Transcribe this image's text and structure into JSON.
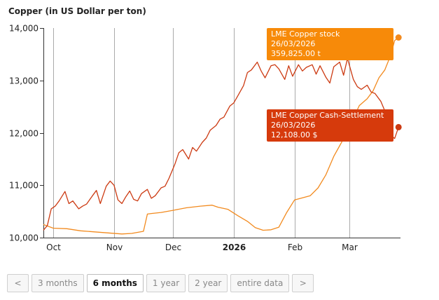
{
  "colors": {
    "stock": "#f28a1e",
    "cash": "#cc3a12",
    "stock_tip": "#f78a09",
    "cash_tip": "#d63a0c",
    "grid": "#aaaaaa"
  },
  "chart_data": {
    "type": "line",
    "title": "Copper (in US Dollar per ton)",
    "ylim": [
      10000,
      14000
    ],
    "y_ticks": [
      10000,
      11000,
      12000,
      13000,
      14000
    ],
    "y_tick_labels": [
      "10,000",
      "11,000",
      "12,000",
      "13,000",
      "14,000"
    ],
    "xlim": [
      "2025-09-26",
      "2026-03-27"
    ],
    "x_ticks": [
      {
        "date": "2025-10-01",
        "label": "Oct",
        "bold": false
      },
      {
        "date": "2025-11-01",
        "label": "Nov",
        "bold": false
      },
      {
        "date": "2025-12-01",
        "label": "Dec",
        "bold": false
      },
      {
        "date": "2026-01-01",
        "label": "2026",
        "bold": true
      },
      {
        "date": "2026-02-01",
        "label": "Feb",
        "bold": false
      },
      {
        "date": "2026-03-01",
        "label": "Mar",
        "bold": false
      }
    ],
    "series": [
      {
        "name": "LME Copper stock",
        "color": "#f28a1e",
        "x": [
          "2025-09-26",
          "2025-10-01",
          "2025-10-08",
          "2025-10-15",
          "2025-10-22",
          "2025-10-29",
          "2025-11-05",
          "2025-11-10",
          "2025-11-13",
          "2025-11-16",
          "2025-11-18",
          "2025-11-20",
          "2025-11-25",
          "2025-12-01",
          "2025-12-08",
          "2025-12-15",
          "2025-12-21",
          "2025-12-24",
          "2025-12-29",
          "2026-01-03",
          "2026-01-08",
          "2026-01-12",
          "2026-01-16",
          "2026-01-20",
          "2026-01-24",
          "2026-01-28",
          "2026-02-01",
          "2026-02-05",
          "2026-02-09",
          "2026-02-13",
          "2026-02-17",
          "2026-02-21",
          "2026-02-25",
          "2026-02-28",
          "2026-03-03",
          "2026-03-06",
          "2026-03-10",
          "2026-03-13",
          "2026-03-16",
          "2026-03-19",
          "2026-03-22",
          "2026-03-24",
          "2026-03-26"
        ],
        "values": [
          10250,
          10180,
          10170,
          10130,
          10110,
          10090,
          10070,
          10080,
          10100,
          10120,
          10450,
          10460,
          10480,
          10520,
          10570,
          10600,
          10620,
          10580,
          10540,
          10420,
          10310,
          10190,
          10140,
          10150,
          10200,
          10480,
          10720,
          10760,
          10800,
          10950,
          11200,
          11550,
          11820,
          12050,
          12280,
          12520,
          12650,
          12800,
          13050,
          13200,
          13480,
          13760,
          13820
        ]
      },
      {
        "name": "LME Copper Cash-Settlement",
        "color": "#cc3a12",
        "x": [
          "2025-09-26",
          "2025-09-28",
          "2025-09-30",
          "2025-10-02",
          "2025-10-04",
          "2025-10-07",
          "2025-10-09",
          "2025-10-11",
          "2025-10-14",
          "2025-10-16",
          "2025-10-18",
          "2025-10-21",
          "2025-10-23",
          "2025-10-25",
          "2025-10-28",
          "2025-10-30",
          "2025-11-01",
          "2025-11-03",
          "2025-11-05",
          "2025-11-07",
          "2025-11-09",
          "2025-11-11",
          "2025-11-13",
          "2025-11-15",
          "2025-11-18",
          "2025-11-20",
          "2025-11-22",
          "2025-11-25",
          "2025-11-27",
          "2025-11-29",
          "2025-12-02",
          "2025-12-04",
          "2025-12-06",
          "2025-12-09",
          "2025-12-11",
          "2025-12-13",
          "2025-12-16",
          "2025-12-18",
          "2025-12-20",
          "2025-12-23",
          "2025-12-25",
          "2025-12-27",
          "2025-12-30",
          "2026-01-01",
          "2026-01-03",
          "2026-01-06",
          "2026-01-08",
          "2026-01-10",
          "2026-01-13",
          "2026-01-15",
          "2026-01-17",
          "2026-01-20",
          "2026-01-22",
          "2026-01-24",
          "2026-01-27",
          "2026-01-29",
          "2026-01-31",
          "2026-02-03",
          "2026-02-05",
          "2026-02-07",
          "2026-02-10",
          "2026-02-12",
          "2026-02-14",
          "2026-02-17",
          "2026-02-19",
          "2026-02-21",
          "2026-02-24",
          "2026-02-26",
          "2026-02-28",
          "2026-03-03",
          "2026-03-05",
          "2026-03-07",
          "2026-03-10",
          "2026-03-12",
          "2026-03-14",
          "2026-03-17",
          "2026-03-19",
          "2026-03-21",
          "2026-03-24",
          "2026-03-26"
        ],
        "values": [
          10140,
          10230,
          10550,
          10600,
          10700,
          10880,
          10650,
          10700,
          10550,
          10600,
          10640,
          10800,
          10900,
          10650,
          10980,
          11080,
          11000,
          10720,
          10650,
          10780,
          10890,
          10730,
          10700,
          10840,
          10920,
          10750,
          10800,
          10950,
          10980,
          11130,
          11400,
          11620,
          11680,
          11500,
          11720,
          11650,
          11820,
          11900,
          12050,
          12140,
          12260,
          12300,
          12510,
          12570,
          12700,
          12900,
          13150,
          13200,
          13350,
          13180,
          13050,
          13280,
          13300,
          13220,
          13020,
          13280,
          13080,
          13300,
          13180,
          13250,
          13300,
          13120,
          13280,
          13060,
          12950,
          13260,
          13350,
          13100,
          13420,
          13020,
          12880,
          12830,
          12910,
          12780,
          12750,
          12600,
          12420,
          12000,
          11890,
          12108
        ]
      }
    ],
    "tooltips": [
      {
        "series": "LME Copper stock",
        "name": "LME Copper stock",
        "date": "26/03/2026",
        "value": "359,825.00 t"
      },
      {
        "series": "LME Copper Cash-Settlement",
        "name": "LME Copper Cash-Settlement",
        "date": "26/03/2026",
        "value": "12,108.00 $"
      }
    ]
  },
  "controls": {
    "prev": "<",
    "next": ">",
    "ranges": [
      "3 months",
      "6 months",
      "1 year",
      "2 year",
      "entire data"
    ],
    "active": "6 months"
  }
}
